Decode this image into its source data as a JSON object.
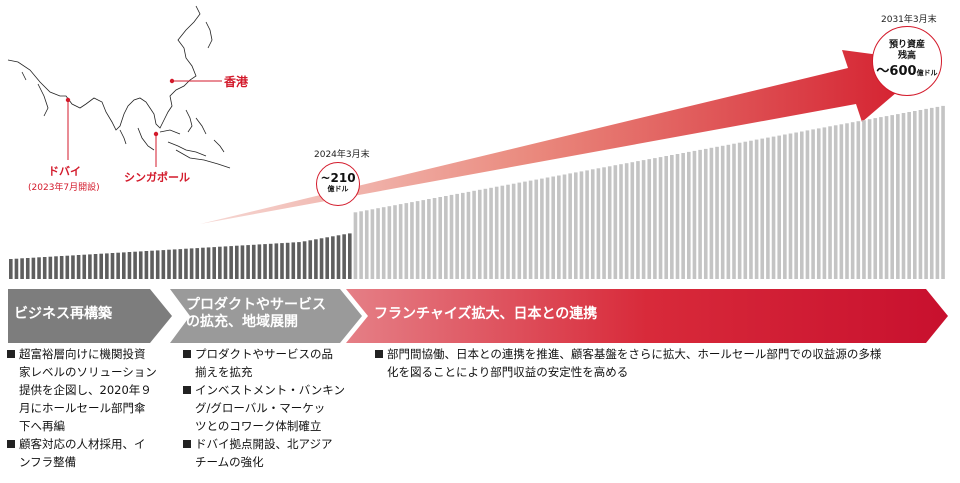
{
  "map": {
    "hong_kong": "香港",
    "singapore": "シンガポール",
    "dubai": "ドバイ",
    "dubai_note": "(2023年7月開設)"
  },
  "milestone_2024": {
    "date": "2024年3月末",
    "value": "~210",
    "unit": "億ドル"
  },
  "milestone_2031": {
    "date": "2031年3月末",
    "line1": "預り資産",
    "line2": "残高",
    "value": "～600",
    "unit": "億ドル"
  },
  "phases": [
    {
      "line1": "ビジネス再構築",
      "line2": ""
    },
    {
      "line1": "プロダクトやサービス",
      "line2": "の拡充、地域展開"
    },
    {
      "line1": "フランチャイズ拡大、日本との連携",
      "line2": ""
    }
  ],
  "col1_bullets": [
    [
      "超富裕層向けに機関投資",
      "家レベルのソリューション",
      "提供を企図し、2020年９",
      "月にホールセール部門傘",
      "下へ再編"
    ],
    [
      "顧客対応の人材採用、イ",
      "ンフラ整備"
    ]
  ],
  "col2_bullets": [
    [
      "プロダクトやサービスの品",
      "揃えを拡充"
    ],
    [
      "インベストメント・バンキン",
      "グ/グローバル・マーケッ",
      "ツとのコワーク体制確立"
    ],
    [
      "ドバイ拠点開設、北アジア",
      "チームの強化"
    ]
  ],
  "col3_bullets": [
    [
      "部門間協働、日本との連携を推進、顧客基盤をさらに拡大、ホールセール部門での収益源の多様",
      "化を図ることにより部門収益の安定性を高める"
    ]
  ],
  "colors": {
    "accent": "#d31a2b",
    "bar_actual": "#5e5e5e",
    "bar_projected": "#c4c4c4"
  }
}
